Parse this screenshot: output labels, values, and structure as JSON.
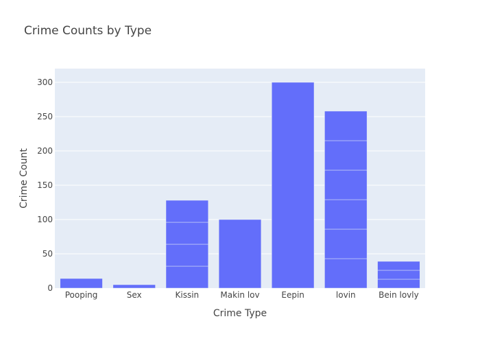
{
  "chart_data": {
    "type": "bar",
    "title": "Crime Counts by Type",
    "xlabel": "Crime Type",
    "ylabel": "Crime Count",
    "ylim": [
      0,
      320
    ],
    "yticks": [
      0,
      50,
      100,
      150,
      200,
      250,
      300
    ],
    "grid": true,
    "categories": [
      "Pooping",
      "Sex",
      "Kissin",
      "Makin lov",
      "Eepin",
      "lovin",
      "Bein lovly"
    ],
    "segments": [
      [
        14
      ],
      [
        5
      ],
      [
        32,
        32,
        32,
        32
      ],
      [
        100
      ],
      [
        300
      ],
      [
        43,
        43,
        43,
        43,
        43,
        43
      ],
      [
        13,
        13,
        13
      ]
    ],
    "values": [
      14,
      5,
      128,
      100,
      300,
      258,
      39
    ],
    "colors": {
      "bar": "#636efa",
      "plot_bg": "#e5ecf6",
      "grid": "#ffffff",
      "text": "#444444"
    }
  }
}
